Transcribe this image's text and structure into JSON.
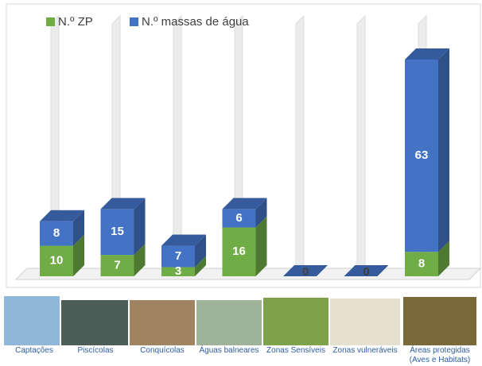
{
  "chart_data": {
    "type": "bar",
    "stacked": true,
    "categories": [
      "Captações",
      "Piscícolas",
      "Conquícolas",
      "Águas balneares",
      "Zonas Sensíveis",
      "Zonas vulneráveis",
      "Áreas protegidas (Aves e Habitats)"
    ],
    "series": [
      {
        "name": "N.º ZP",
        "color": "#70ad47",
        "values": [
          10,
          7,
          3,
          16,
          null,
          null,
          8
        ]
      },
      {
        "name": "N.º massas de água",
        "color": "#4472c4",
        "values": [
          8,
          15,
          7,
          6,
          0,
          0,
          63
        ]
      }
    ]
  }
}
